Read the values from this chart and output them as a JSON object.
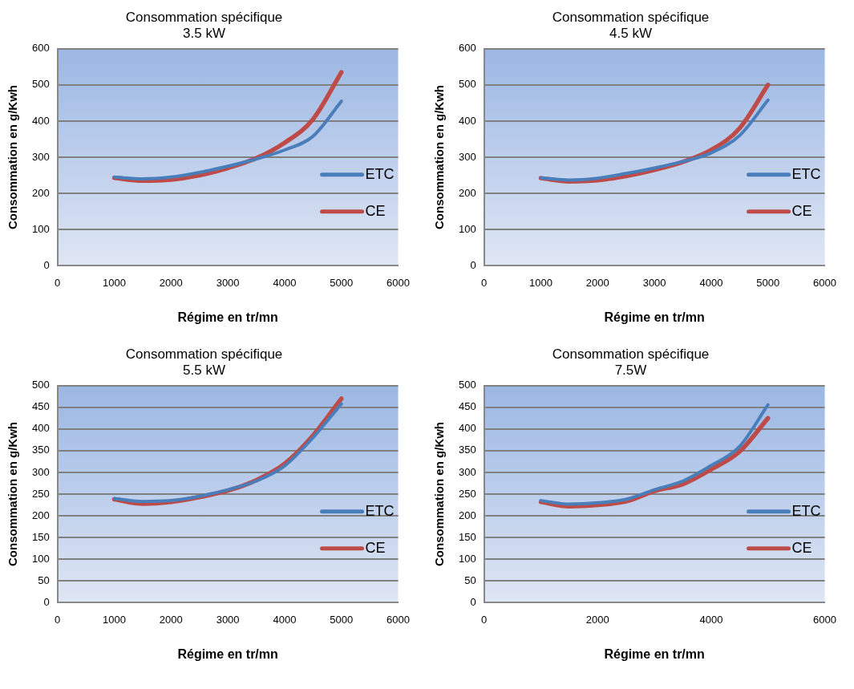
{
  "chart_data": [
    {
      "type": "line",
      "title": "Consommation spécifique",
      "subtitle": "3.5 kW",
      "xlabel": "Régime en tr/mn",
      "ylabel": "Consommation en g/Kwh",
      "x": [
        1000,
        1500,
        2000,
        2500,
        3000,
        3500,
        4000,
        4500,
        5000
      ],
      "series": [
        {
          "name": "ETC",
          "color": "#4a7ebb",
          "values": [
            245,
            240,
            245,
            258,
            275,
            295,
            320,
            358,
            455
          ]
        },
        {
          "name": "CE",
          "color": "#be4b48",
          "values": [
            243,
            235,
            238,
            250,
            270,
            297,
            340,
            405,
            535
          ]
        }
      ],
      "xlim": [
        0,
        6000
      ],
      "xticks": [
        0,
        1000,
        2000,
        3000,
        4000,
        5000,
        6000
      ],
      "ylim": [
        0,
        600
      ],
      "yticks": [
        0,
        100,
        200,
        300,
        400,
        500,
        600
      ],
      "grid": "y",
      "legend": "right",
      "marker": "none",
      "line_style": "solid"
    },
    {
      "type": "line",
      "title": "Consommation spécifique",
      "subtitle": "4.5 kW",
      "xlabel": "Régime en tr/mn",
      "ylabel": "Consommation en g/Kwh",
      "x": [
        1000,
        1500,
        2000,
        2500,
        3000,
        3500,
        4000,
        4500,
        5000
      ],
      "series": [
        {
          "name": "ETC",
          "color": "#4a7ebb",
          "values": [
            243,
            237,
            242,
            255,
            270,
            288,
            312,
            360,
            458
          ]
        },
        {
          "name": "CE",
          "color": "#be4b48",
          "values": [
            242,
            233,
            236,
            248,
            265,
            287,
            320,
            380,
            500
          ]
        }
      ],
      "xlim": [
        0,
        6000
      ],
      "xticks": [
        0,
        1000,
        2000,
        3000,
        4000,
        5000,
        6000
      ],
      "ylim": [
        0,
        600
      ],
      "yticks": [
        0,
        100,
        200,
        300,
        400,
        500,
        600
      ],
      "grid": "y",
      "legend": "right",
      "marker": "none",
      "line_style": "solid"
    },
    {
      "type": "line",
      "title": "Consommation spécifique",
      "subtitle": "5.5 kW",
      "xlabel": "Régime en tr/mn",
      "ylabel": "Consommation en g/Kwh",
      "x": [
        1000,
        1500,
        2000,
        2500,
        3000,
        3500,
        4000,
        4500,
        5000
      ],
      "series": [
        {
          "name": "ETC",
          "color": "#4a7ebb",
          "values": [
            240,
            233,
            235,
            245,
            260,
            280,
            315,
            380,
            458
          ]
        },
        {
          "name": "CE",
          "color": "#be4b48",
          "values": [
            238,
            228,
            232,
            243,
            258,
            282,
            320,
            385,
            470
          ]
        }
      ],
      "xlim": [
        0,
        6000
      ],
      "xticks": [
        0,
        1000,
        2000,
        3000,
        4000,
        5000,
        6000
      ],
      "ylim": [
        0,
        500
      ],
      "yticks": [
        0,
        50,
        100,
        150,
        200,
        250,
        300,
        350,
        400,
        450,
        500
      ],
      "grid": "y",
      "legend": "right",
      "marker": "none",
      "line_style": "solid"
    },
    {
      "type": "line",
      "title": "Consommation spécifique",
      "subtitle": "7.5W",
      "xlabel": "Régime en tr/mn",
      "ylabel": "Consommation en g/Kwh",
      "x": [
        1000,
        1500,
        2000,
        2500,
        3000,
        3500,
        4000,
        4500,
        5000
      ],
      "series": [
        {
          "name": "ETC",
          "color": "#4a7ebb",
          "values": [
            235,
            227,
            230,
            238,
            260,
            280,
            316,
            360,
            456
          ]
        },
        {
          "name": "CE",
          "color": "#be4b48",
          "values": [
            232,
            222,
            225,
            233,
            257,
            273,
            307,
            348,
            425
          ]
        }
      ],
      "xlim": [
        0,
        6000
      ],
      "xticks": [
        0,
        2000,
        4000,
        6000
      ],
      "ylim": [
        0,
        500
      ],
      "yticks": [
        0,
        50,
        100,
        150,
        200,
        250,
        300,
        350,
        400,
        450,
        500
      ],
      "grid": "y",
      "legend": "right",
      "marker": "none",
      "line_style": "solid"
    }
  ]
}
